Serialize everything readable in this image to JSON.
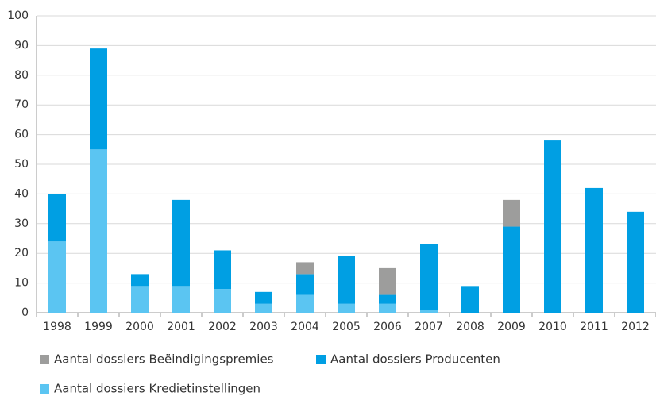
{
  "chart_data": {
    "type": "stacked_bar",
    "categories": [
      "1998",
      "1999",
      "2000",
      "2001",
      "2002",
      "2003",
      "2004",
      "2005",
      "2006",
      "2007",
      "2008",
      "2009",
      "2010",
      "2011",
      "2012"
    ],
    "series": [
      {
        "name": "Aantal dossiers Beëindigingspremies",
        "color": "#9d9d9c",
        "values": [
          0,
          0,
          0,
          0,
          0,
          0,
          4,
          0,
          9,
          0,
          0,
          9,
          0,
          0,
          0
        ]
      },
      {
        "name": "Aantal dossiers Producenten",
        "color": "#009fe3",
        "values": [
          16,
          34,
          4,
          29,
          13,
          4,
          7,
          16,
          3,
          22,
          9,
          29,
          58,
          42,
          34
        ]
      },
      {
        "name": "Aantal dossiers Kredietinstellingen",
        "color": "#5bc5f2",
        "values": [
          24,
          55,
          9,
          9,
          8,
          3,
          6,
          3,
          3,
          1,
          0,
          0,
          0,
          0,
          0
        ]
      }
    ],
    "ylim": [
      0,
      100
    ],
    "yticks": [
      0,
      10,
      20,
      30,
      40,
      50,
      60,
      70,
      80,
      90,
      100
    ],
    "grid": true
  }
}
